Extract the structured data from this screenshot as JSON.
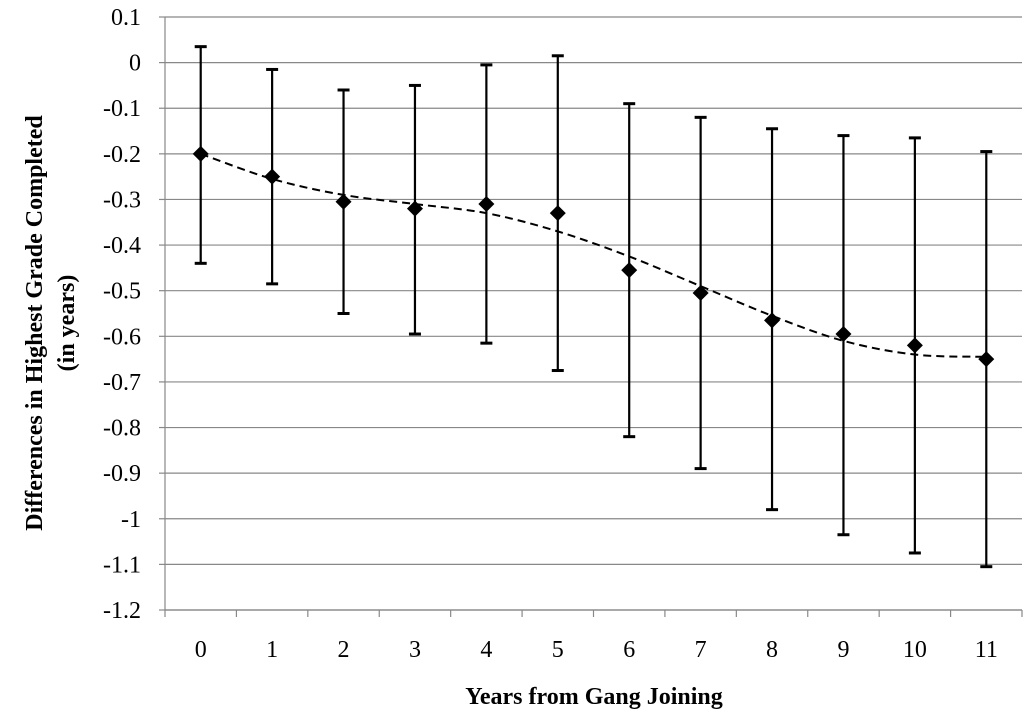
{
  "chart_data": {
    "type": "scatter",
    "title": "",
    "xlabel": "Years from Gang Joining",
    "ylabel_lines": [
      "Differences in Highest Grade Completed",
      "(in years)"
    ],
    "x": [
      0,
      1,
      2,
      3,
      4,
      5,
      6,
      7,
      8,
      9,
      10,
      11
    ],
    "x_tick_labels": [
      "0",
      "1",
      "2",
      "3",
      "4",
      "5",
      "6",
      "7",
      "8",
      "9",
      "10",
      "11"
    ],
    "y_tick_labels": [
      "0.1",
      "0",
      "-0.1",
      "-0.2",
      "-0.3",
      "-0.4",
      "-0.5",
      "-0.6",
      "-0.7",
      "-0.8",
      "-0.9",
      "-1",
      "-1.1",
      "-1.2"
    ],
    "ylim": [
      -1.2,
      0.1
    ],
    "y_tick_step": 0.1,
    "grid": "horizontal",
    "series": [
      {
        "values": [
          -0.2,
          -0.25,
          -0.305,
          -0.32,
          -0.31,
          -0.33,
          -0.455,
          -0.505,
          -0.565,
          -0.595,
          -0.62,
          -0.65
        ],
        "error_upper": [
          0.035,
          -0.015,
          -0.06,
          -0.05,
          -0.005,
          0.015,
          -0.09,
          -0.12,
          -0.145,
          -0.16,
          -0.165,
          -0.195
        ],
        "error_lower": [
          -0.44,
          -0.485,
          -0.55,
          -0.595,
          -0.615,
          -0.675,
          -0.82,
          -0.89,
          -0.98,
          -1.035,
          -1.075,
          -1.105
        ],
        "marker": "diamond",
        "color": "#000000"
      }
    ],
    "trendline": {
      "style": "dashed",
      "type": "polynomial",
      "values": [
        -0.2,
        -0.255,
        -0.29,
        -0.31,
        -0.33,
        -0.37,
        -0.425,
        -0.49,
        -0.555,
        -0.61,
        -0.64,
        -0.645
      ]
    }
  }
}
